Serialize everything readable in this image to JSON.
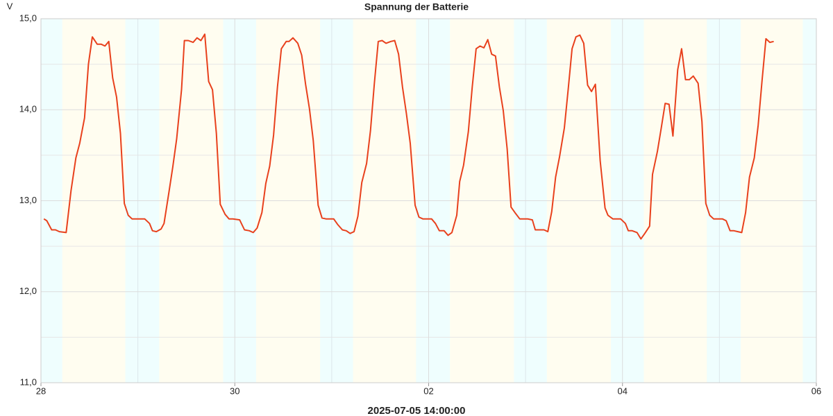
{
  "chart_data": {
    "type": "line",
    "title": "Spannung der Batterie",
    "y_unit": "V",
    "footer": "2025-07-05 14:00:00",
    "color": "#e8401c",
    "grid": true,
    "xlim": [
      0,
      8
    ],
    "ylim": [
      11,
      15
    ],
    "xticks": [
      {
        "value": 0,
        "label": "28"
      },
      {
        "value": 2,
        "label": "30"
      },
      {
        "value": 4,
        "label": "02"
      },
      {
        "value": 6,
        "label": "04"
      },
      {
        "value": 8,
        "label": "06"
      }
    ],
    "yticks": [
      {
        "value": 11,
        "label": "11,0"
      },
      {
        "value": 12,
        "label": "12,0"
      },
      {
        "value": 13,
        "label": "13,0"
      },
      {
        "value": 14,
        "label": "14,0"
      },
      {
        "value": 15,
        "label": "15,0"
      }
    ],
    "x_minor_grid": [
      1,
      3,
      5,
      7
    ],
    "y_minor_grid": [
      11.5,
      12.5,
      13.5,
      14.5
    ],
    "night_color": "#effefe",
    "day_color": "#fffdf0",
    "day_bands": [
      [
        0.22,
        0.87
      ],
      [
        1.22,
        1.88
      ],
      [
        2.22,
        2.88
      ],
      [
        3.22,
        3.87
      ],
      [
        4.22,
        4.88
      ],
      [
        5.22,
        5.88
      ],
      [
        6.22,
        6.87
      ],
      [
        7.22,
        7.86
      ]
    ],
    "x": [
      0.03,
      0.06,
      0.11,
      0.15,
      0.19,
      0.26,
      0.31,
      0.36,
      0.4,
      0.45,
      0.49,
      0.53,
      0.58,
      0.62,
      0.66,
      0.7,
      0.74,
      0.78,
      0.82,
      0.86,
      0.9,
      0.94,
      0.99,
      1.07,
      1.12,
      1.15,
      1.19,
      1.24,
      1.27,
      1.32,
      1.36,
      1.4,
      1.45,
      1.48,
      1.52,
      1.57,
      1.61,
      1.65,
      1.69,
      1.73,
      1.77,
      1.81,
      1.85,
      1.9,
      1.94,
      1.98,
      2.05,
      2.1,
      2.15,
      2.19,
      2.23,
      2.28,
      2.32,
      2.36,
      2.4,
      2.44,
      2.48,
      2.53,
      2.56,
      2.6,
      2.65,
      2.69,
      2.73,
      2.77,
      2.81,
      2.86,
      2.9,
      2.94,
      3.02,
      3.06,
      3.11,
      3.15,
      3.19,
      3.23,
      3.27,
      3.31,
      3.36,
      3.4,
      3.44,
      3.48,
      3.52,
      3.56,
      3.61,
      3.65,
      3.69,
      3.73,
      3.77,
      3.81,
      3.86,
      3.9,
      3.94,
      4.03,
      4.07,
      4.11,
      4.16,
      4.2,
      4.24,
      4.29,
      4.32,
      4.36,
      4.41,
      4.45,
      4.49,
      4.53,
      4.57,
      4.61,
      4.65,
      4.69,
      4.73,
      4.77,
      4.81,
      4.85,
      4.89,
      4.94,
      5.02,
      5.07,
      5.1,
      5.14,
      5.19,
      5.23,
      5.27,
      5.31,
      5.35,
      5.4,
      5.44,
      5.48,
      5.52,
      5.56,
      5.6,
      5.64,
      5.68,
      5.72,
      5.77,
      5.82,
      5.85,
      5.9,
      5.98,
      6.03,
      6.06,
      6.1,
      6.15,
      6.19,
      6.23,
      6.28,
      6.31,
      6.36,
      6.4,
      6.44,
      6.48,
      6.52,
      6.57,
      6.61,
      6.65,
      6.69,
      6.73,
      6.78,
      6.82,
      6.86,
      6.9,
      6.94,
      7.03,
      7.07,
      7.11,
      7.15,
      7.19,
      7.23,
      7.27,
      7.31,
      7.36,
      7.4,
      7.44,
      7.48,
      7.52,
      7.56
    ],
    "values": [
      12.8,
      12.78,
      12.68,
      12.68,
      12.66,
      12.65,
      13.11,
      13.47,
      13.63,
      13.91,
      14.5,
      14.8,
      14.72,
      14.72,
      14.7,
      14.75,
      14.35,
      14.14,
      13.74,
      12.97,
      12.84,
      12.8,
      12.8,
      12.8,
      12.75,
      12.67,
      12.66,
      12.69,
      12.75,
      13.09,
      13.37,
      13.68,
      14.22,
      14.76,
      14.76,
      14.74,
      14.79,
      14.76,
      14.83,
      14.31,
      14.22,
      13.74,
      12.96,
      12.85,
      12.8,
      12.8,
      12.79,
      12.68,
      12.67,
      12.65,
      12.7,
      12.87,
      13.19,
      13.38,
      13.72,
      14.25,
      14.67,
      14.75,
      14.75,
      14.79,
      14.73,
      14.6,
      14.28,
      14.01,
      13.66,
      12.95,
      12.81,
      12.8,
      12.8,
      12.74,
      12.68,
      12.67,
      12.64,
      12.66,
      12.83,
      13.2,
      13.41,
      13.77,
      14.29,
      14.75,
      14.76,
      14.73,
      14.75,
      14.76,
      14.61,
      14.25,
      13.96,
      13.63,
      12.95,
      12.82,
      12.8,
      12.8,
      12.75,
      12.67,
      12.67,
      12.62,
      12.65,
      12.84,
      13.21,
      13.39,
      13.76,
      14.25,
      14.67,
      14.7,
      14.68,
      14.77,
      14.61,
      14.59,
      14.25,
      13.99,
      13.57,
      12.93,
      12.87,
      12.8,
      12.8,
      12.79,
      12.68,
      12.68,
      12.68,
      12.66,
      12.88,
      13.26,
      13.48,
      13.8,
      14.23,
      14.67,
      14.8,
      14.82,
      14.73,
      14.27,
      14.2,
      14.28,
      13.44,
      12.92,
      12.84,
      12.8,
      12.8,
      12.75,
      12.67,
      12.67,
      12.65,
      12.58,
      12.64,
      12.72,
      13.29,
      13.54,
      13.8,
      14.07,
      14.06,
      13.71,
      14.44,
      14.67,
      14.33,
      14.33,
      14.37,
      14.29,
      13.87,
      12.97,
      12.84,
      12.8,
      12.8,
      12.78,
      12.67,
      12.67,
      12.66,
      12.65,
      12.87,
      13.26,
      13.47,
      13.83,
      14.32,
      14.78,
      14.74,
      14.75
    ]
  }
}
